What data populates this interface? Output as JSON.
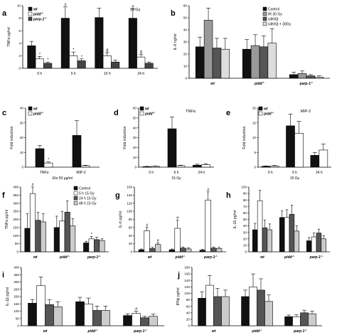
{
  "chart_data": [
    {
      "panel": "a",
      "type": "bar",
      "annotation": "15 Gy",
      "ylabel": "TNFα pg/ml",
      "ylim": [
        0,
        10
      ],
      "yticks": [
        0,
        2,
        4,
        6,
        8,
        10
      ],
      "categories": [
        "0 h",
        "5 h",
        "10 h",
        "24 h"
      ],
      "series": [
        {
          "name": "wt",
          "values": [
            3.6,
            8.0,
            8.1,
            8.0
          ],
          "errors": [
            0.7,
            1.8,
            1.5,
            1.5
          ]
        },
        {
          "name": "pidd-/-",
          "values": [
            1.5,
            2.0,
            2.0,
            1.8
          ],
          "errors": [
            0.4,
            0.6,
            0.5,
            0.4
          ]
        },
        {
          "name": "parp-1-/-",
          "values": [
            0.8,
            1.2,
            1.0,
            0.8
          ],
          "errors": [
            0.2,
            0.3,
            0.3,
            0.2
          ]
        }
      ],
      "markers": [
        [
          "",
          "*",
          "*"
        ],
        [
          "#",
          "*",
          "*"
        ],
        [
          "",
          "$",
          ""
        ],
        [
          "#",
          "$",
          ""
        ]
      ],
      "colors": [
        "#111111",
        "#ffffff",
        "#444444"
      ]
    },
    {
      "panel": "b",
      "type": "bar",
      "ylabel": "IL-6 ng/ml",
      "ylim": [
        0,
        60
      ],
      "yticks": [
        0,
        10,
        20,
        30,
        40,
        50,
        60
      ],
      "categories": [
        "wt",
        "pidd-/-",
        "parp-1-/-"
      ],
      "series": [
        {
          "name": "Control",
          "values": [
            26,
            24,
            3
          ],
          "errors": [
            8,
            8,
            2
          ]
        },
        {
          "name": "IR 30 Gy",
          "values": [
            48,
            27,
            4
          ],
          "errors": [
            10,
            9,
            2
          ]
        },
        {
          "name": "siIKKβ",
          "values": [
            25,
            26,
            2
          ],
          "errors": [
            8,
            9,
            1
          ]
        },
        {
          "name": "siIKKβ + 30Gy",
          "values": [
            24,
            29,
            1
          ],
          "errors": [
            9,
            12,
            1
          ]
        }
      ],
      "colors": [
        "#111111",
        "#999999",
        "#555555",
        "#dddddd"
      ]
    },
    {
      "panel": "c",
      "type": "bar",
      "ylabel": "Fold induction",
      "ylim": [
        0,
        40
      ],
      "yticks": [
        0,
        10,
        20,
        30,
        40
      ],
      "categories": [
        "TNFα",
        "MIP-2"
      ],
      "xlabel": "Eto 50 μg/ml",
      "series": [
        {
          "name": "wt",
          "values": [
            12.5,
            21.5
          ],
          "errors": [
            2.2,
            10.0
          ]
        },
        {
          "name": "pidd-/-",
          "values": [
            2.8,
            1.0
          ],
          "errors": [
            0.7,
            0.3
          ]
        }
      ],
      "markers": [
        [
          "",
          "*"
        ],
        [
          "",
          ""
        ]
      ],
      "colors": [
        "#111111",
        "#ffffff"
      ]
    },
    {
      "panel": "d",
      "type": "bar",
      "annotation": "TNFα",
      "ylabel": "Fold induction",
      "ylim": [
        0,
        60
      ],
      "yticks": [
        0,
        10,
        20,
        30,
        40,
        50,
        60
      ],
      "categories": [
        "0 h",
        "5 h",
        "24 h"
      ],
      "xlabel": "15 Gy",
      "series": [
        {
          "name": "wt",
          "values": [
            0.5,
            39,
            2
          ],
          "errors": [
            0.3,
            12,
            1
          ]
        },
        {
          "name": "pidd-/-",
          "values": [
            0.8,
            1.5,
            2.5
          ],
          "errors": [
            0.3,
            0.5,
            1
          ]
        }
      ],
      "colors": [
        "#111111",
        "#ffffff"
      ]
    },
    {
      "panel": "e",
      "type": "bar",
      "annotation": "MIP-2",
      "ylabel": "Fold induction",
      "ylim": [
        0,
        20
      ],
      "yticks": [
        0,
        5,
        10,
        15,
        20
      ],
      "categories": [
        "0 h",
        "5 h",
        "24 h"
      ],
      "xlabel": "15 Gy",
      "series": [
        {
          "name": "wt",
          "values": [
            0.3,
            14,
            4
          ],
          "errors": [
            0.1,
            4,
            1
          ]
        },
        {
          "name": "pidd-/-",
          "values": [
            0.4,
            11.5,
            5.8
          ],
          "errors": [
            0.2,
            4,
            2
          ]
        }
      ],
      "colors": [
        "#111111",
        "#ffffff"
      ]
    },
    {
      "panel": "f",
      "type": "bar",
      "ylabel": "TNFα pg/ml",
      "ylim": [
        0,
        400
      ],
      "yticks": [
        0,
        50,
        100,
        150,
        200,
        250,
        300,
        350,
        400
      ],
      "categories": [
        "wt",
        "pidd-/-",
        "parp-1-/-"
      ],
      "series": [
        {
          "name": "Control",
          "values": [
            145,
            150,
            55
          ],
          "errors": [
            90,
            70,
            10
          ]
        },
        {
          "name": "5 h 15 Gy",
          "values": [
            360,
            190,
            80
          ],
          "errors": [
            50,
            60,
            15
          ]
        },
        {
          "name": "24 h 15 Gy",
          "values": [
            195,
            245,
            75
          ],
          "errors": [
            50,
            70,
            15
          ]
        },
        {
          "name": "48 h 15 Gy",
          "values": [
            185,
            160,
            70
          ],
          "errors": [
            50,
            45,
            10
          ]
        }
      ],
      "markers": [
        [
          "",
          "#",
          "",
          ""
        ],
        [
          "",
          "",
          "",
          ""
        ],
        [
          "",
          "*",
          "",
          ""
        ]
      ],
      "colors": [
        "#111111",
        "#ffffff",
        "#555555",
        "#cccccc"
      ]
    },
    {
      "panel": "g",
      "type": "bar",
      "ylabel": "IL-6 pg/ml",
      "ylim": [
        0,
        160
      ],
      "yticks": [
        0,
        20,
        40,
        60,
        80,
        100,
        120,
        140,
        160
      ],
      "categories": [
        "wt",
        "pidd-/-",
        "parp-1-/-"
      ],
      "series": [
        {
          "name": "Control",
          "values": [
            5,
            5,
            4
          ],
          "errors": [
            2,
            2,
            2
          ]
        },
        {
          "name": "5 h 15 Gy",
          "values": [
            52,
            58,
            128
          ],
          "errors": [
            8,
            20,
            20
          ]
        },
        {
          "name": "24 h 15 Gy",
          "values": [
            8,
            9,
            9
          ],
          "errors": [
            3,
            3,
            3
          ]
        },
        {
          "name": "48 h 15 Gy",
          "values": [
            18,
            7,
            8
          ],
          "errors": [
            4,
            3,
            3
          ]
        }
      ],
      "markers": [
        [
          "",
          "#",
          "",
          "#"
        ],
        [
          "",
          "#",
          "",
          ""
        ],
        [
          "",
          "#",
          "",
          ""
        ]
      ],
      "colors": [
        "#111111",
        "#ffffff",
        "#555555",
        "#cccccc"
      ]
    },
    {
      "panel": "h",
      "type": "bar",
      "ylabel": "IL-10 pg/ml",
      "ylim": [
        0,
        100
      ],
      "yticks": [
        0,
        10,
        20,
        30,
        40,
        50,
        60,
        70,
        80,
        90,
        100
      ],
      "categories": [
        "wt",
        "pidd-/-",
        "parp-1-/-"
      ],
      "series": [
        {
          "name": "Control",
          "values": [
            34,
            53,
            17
          ],
          "errors": [
            10,
            10,
            5
          ]
        },
        {
          "name": "5 h 15 Gy",
          "values": [
            79,
            53,
            23
          ],
          "errors": [
            16,
            12,
            6
          ]
        },
        {
          "name": "24 h 15 Gy",
          "values": [
            37,
            58,
            29
          ],
          "errors": [
            12,
            14,
            6
          ]
        },
        {
          "name": "48 h 15 Gy",
          "values": [
            34,
            32,
            20
          ],
          "errors": [
            9,
            8,
            5
          ]
        }
      ],
      "colors": [
        "#111111",
        "#ffffff",
        "#555555",
        "#cccccc"
      ]
    },
    {
      "panel": "i",
      "type": "bar",
      "ylabel": "IL-1β pg/ml",
      "ylim": [
        0,
        400
      ],
      "yticks": [
        0,
        50,
        100,
        150,
        200,
        250,
        300,
        350,
        400
      ],
      "categories": [
        "wt",
        "pidd-/-",
        "parp-1-/-"
      ],
      "series": [
        {
          "name": "Control",
          "values": [
            155,
            165,
            70
          ],
          "errors": [
            25,
            30,
            12
          ]
        },
        {
          "name": "5 h 15 Gy",
          "values": [
            275,
            150,
            85
          ],
          "errors": [
            60,
            40,
            15
          ]
        },
        {
          "name": "24 h 15 Gy",
          "values": [
            145,
            105,
            55
          ],
          "errors": [
            35,
            30,
            10
          ]
        },
        {
          "name": "48 h 15 Gy",
          "values": [
            130,
            105,
            65
          ],
          "errors": [
            35,
            30,
            15
          ]
        }
      ],
      "markers": [
        [
          "",
          "",
          "",
          ""
        ],
        [
          "",
          "",
          "",
          ""
        ],
        [
          "",
          "#",
          "",
          ""
        ]
      ],
      "colors": [
        "#111111",
        "#ffffff",
        "#555555",
        "#cccccc"
      ]
    },
    {
      "panel": "j",
      "type": "bar",
      "ylabel": "IFNγ pg/ml",
      "ylim": [
        0,
        180
      ],
      "yticks": [
        0,
        20,
        40,
        60,
        80,
        100,
        120,
        140,
        160,
        180
      ],
      "categories": [
        "wt",
        "pidd-/-",
        "parp-1-/-"
      ],
      "series": [
        {
          "name": "Control",
          "values": [
            85,
            90,
            28
          ],
          "errors": [
            20,
            20,
            5
          ]
        },
        {
          "name": "5 h 15 Gy",
          "values": [
            125,
            120,
            28
          ],
          "errors": [
            30,
            40,
            6
          ]
        },
        {
          "name": "24 h 15 Gy",
          "values": [
            90,
            110,
            40
          ],
          "errors": [
            25,
            35,
            8
          ]
        },
        {
          "name": "48 h 15 Gy",
          "values": [
            90,
            75,
            37
          ],
          "errors": [
            20,
            20,
            8
          ]
        }
      ],
      "colors": [
        "#111111",
        "#ffffff",
        "#555555",
        "#cccccc"
      ]
    }
  ]
}
